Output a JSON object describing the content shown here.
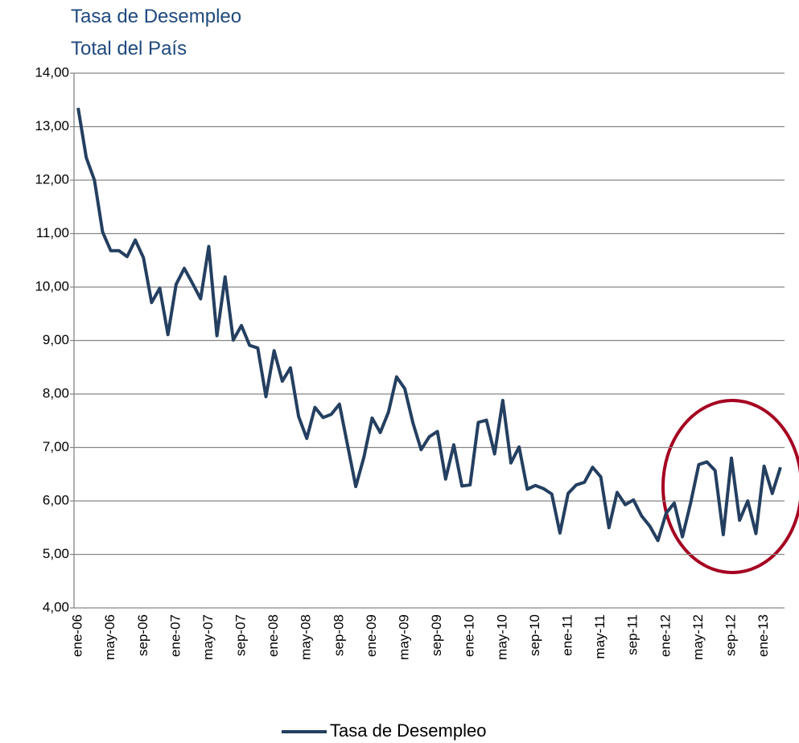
{
  "chart_data": {
    "type": "line",
    "title": "Tasa de Desempleo",
    "subtitle": "Total del País",
    "categories": [
      "ene-06",
      null,
      null,
      null,
      "may-06",
      null,
      null,
      null,
      "sep-06",
      null,
      null,
      null,
      "ene-07",
      null,
      null,
      null,
      "may-07",
      null,
      null,
      null,
      "sep-07",
      null,
      null,
      null,
      "ene-08",
      null,
      null,
      null,
      "may-08",
      null,
      null,
      null,
      "sep-08",
      null,
      null,
      null,
      "ene-09",
      null,
      null,
      null,
      "may-09",
      null,
      null,
      null,
      "sep-09",
      null,
      null,
      null,
      "ene-10",
      null,
      null,
      null,
      "may-10",
      null,
      null,
      null,
      "sep-10",
      null,
      null,
      null,
      "ene-11",
      null,
      null,
      null,
      "may-11",
      null,
      null,
      null,
      "sep-11",
      null,
      null,
      null,
      "ene-12",
      null,
      null,
      null,
      "may-12",
      null,
      null,
      null,
      "sep-12",
      null,
      null,
      null,
      "ene-13",
      null,
      null
    ],
    "series": [
      {
        "name": "Tasa de Desempleo",
        "color": "#243f60",
        "values": [
          13.35,
          12.42,
          12.0,
          11.03,
          10.68,
          10.68,
          10.57,
          10.88,
          10.55,
          9.71,
          9.98,
          9.11,
          10.05,
          10.35,
          10.07,
          9.78,
          10.76,
          9.09,
          10.19,
          9.01,
          9.28,
          8.91,
          8.86,
          7.95,
          8.81,
          8.24,
          8.49,
          7.58,
          7.17,
          7.75,
          7.56,
          7.62,
          7.81,
          7.04,
          6.27,
          6.82,
          7.55,
          7.28,
          7.66,
          8.32,
          8.1,
          7.46,
          6.96,
          7.2,
          7.3,
          6.41,
          7.05,
          6.28,
          6.3,
          7.47,
          7.51,
          6.88,
          7.88,
          6.71,
          7.01,
          6.22,
          6.29,
          6.23,
          6.13,
          5.4,
          6.14,
          6.3,
          6.35,
          6.63,
          6.45,
          5.5,
          6.16,
          5.93,
          6.02,
          5.72,
          5.53,
          5.26,
          5.77,
          5.96,
          5.33,
          5.96,
          6.68,
          6.73,
          6.57,
          5.37,
          6.8,
          5.64,
          6.0,
          5.39,
          6.65,
          6.14,
          6.63
        ]
      }
    ],
    "ylim": [
      4,
      14
    ],
    "yticks": [
      {
        "value": 4,
        "label": "4,00"
      },
      {
        "value": 5,
        "label": "5,00"
      },
      {
        "value": 6,
        "label": "6,00"
      },
      {
        "value": 7,
        "label": "7,00"
      },
      {
        "value": 8,
        "label": "8,00"
      },
      {
        "value": 9,
        "label": "9,00"
      },
      {
        "value": 10,
        "label": "10,00"
      },
      {
        "value": 11,
        "label": "11,00"
      },
      {
        "value": 12,
        "label": "12,00"
      },
      {
        "value": 13,
        "label": "13,00"
      },
      {
        "value": 14,
        "label": "14,00"
      }
    ],
    "grid": true,
    "legend": "bottom"
  }
}
